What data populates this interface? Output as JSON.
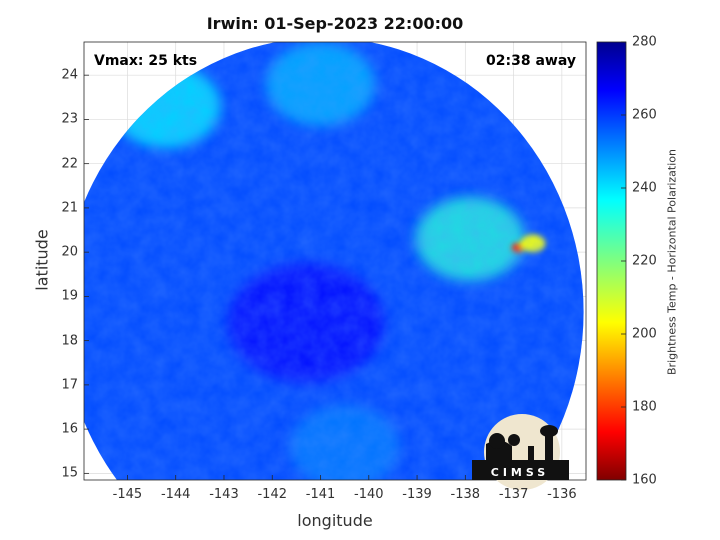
{
  "figure": {
    "title": "Irwin: 01-Sep-2023 22:00:00",
    "xlabel": "longitude",
    "ylabel": "latitude",
    "vmax_text": "Vmax: 25 kts",
    "time_offset_text": "02:38 away",
    "logo_text": "CIMSS"
  },
  "colorbar": {
    "label": "Brightness Temp - Horizontal Polarization",
    "colormap": "jet",
    "range": [
      160,
      280
    ],
    "ticks": [
      160,
      180,
      200,
      220,
      240,
      260,
      280
    ]
  },
  "chart_data": {
    "type": "heatmap",
    "title": "Irwin: 01-Sep-2023 22:00:00",
    "xlabel": "longitude",
    "ylabel": "latitude",
    "xlim": [
      -145.9,
      -135.5
    ],
    "ylim": [
      14.85,
      24.75
    ],
    "xticks": [
      -145,
      -144,
      -143,
      -142,
      -141,
      -140,
      -139,
      -138,
      -137,
      -136
    ],
    "yticks": [
      15,
      16,
      17,
      18,
      19,
      20,
      21,
      22,
      23,
      24
    ],
    "grid": true,
    "swath_center": [
      -140.95,
      18.65
    ],
    "swath_radius_deg": [
      5.4,
      6.2
    ],
    "value_label": "Brightness Temp - Horizontal Polarization",
    "value_range": [
      160,
      280
    ],
    "background_value": 258,
    "features": [
      {
        "label": "deep convection (coldest)",
        "lon": -136.9,
        "lat": 20.1,
        "value": 178
      },
      {
        "label": "deep convection",
        "lon": -136.6,
        "lat": 20.2,
        "value": 205
      },
      {
        "label": "convective band",
        "lon": -137.9,
        "lat": 20.3,
        "value": 232
      },
      {
        "label": "cyclone center (warm)",
        "lon": -141.3,
        "lat": 18.4,
        "value": 266
      },
      {
        "label": "northwest warm region",
        "lon": -144.2,
        "lat": 23.3,
        "value": 238
      },
      {
        "label": "north warm region",
        "lon": -141.0,
        "lat": 23.8,
        "value": 245
      },
      {
        "label": "southern region",
        "lon": -140.5,
        "lat": 15.6,
        "value": 252
      }
    ]
  }
}
